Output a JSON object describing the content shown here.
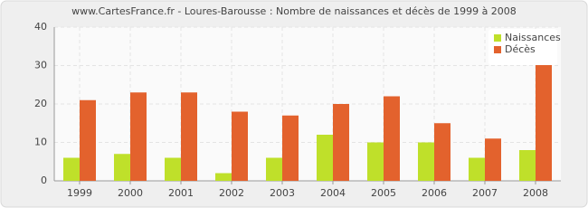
{
  "chart_data": {
    "type": "bar",
    "title": "www.CartesFrance.fr - Loures-Barousse : Nombre de naissances et décès de 1999 à 2008",
    "categories": [
      "1999",
      "2000",
      "2001",
      "2002",
      "2003",
      "2004",
      "2005",
      "2006",
      "2007",
      "2008"
    ],
    "series": [
      {
        "name": "Naissances",
        "color": "#bfe02a",
        "values": [
          6,
          7,
          6,
          2,
          6,
          12,
          10,
          10,
          6,
          8
        ]
      },
      {
        "name": "Décès",
        "color": "#e3622d",
        "values": [
          21,
          23,
          23,
          18,
          17,
          20,
          22,
          15,
          11,
          32
        ]
      }
    ],
    "ylim": [
      0,
      40
    ],
    "yticks": [
      0,
      10,
      20,
      30,
      40
    ],
    "grid": true,
    "legend": "top-right"
  }
}
